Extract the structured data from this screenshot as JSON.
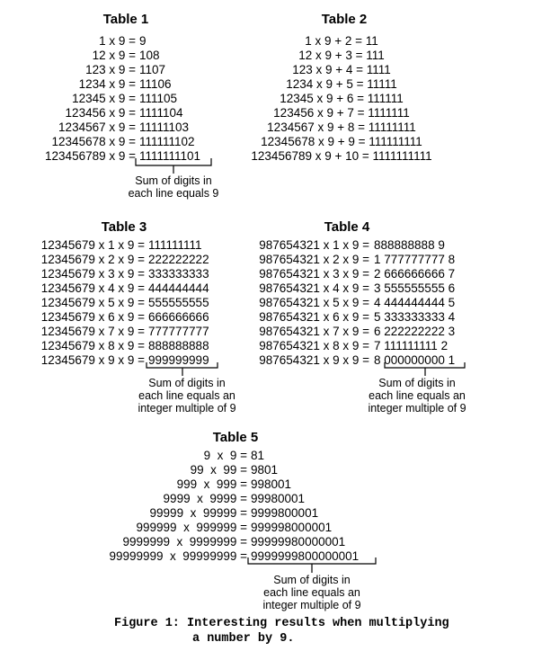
{
  "table1": {
    "title": "Table 1",
    "lines": [
      [
        "1 x 9 =",
        "9"
      ],
      [
        "12 x 9 =",
        "108"
      ],
      [
        "123 x 9 =",
        "1107"
      ],
      [
        "1234 x 9 =",
        "11106"
      ],
      [
        "12345 x 9 =",
        "111105"
      ],
      [
        "123456 x 9 =",
        "1111104"
      ],
      [
        "1234567 x 9 =",
        "11111103"
      ],
      [
        "12345678 x 9 =",
        "111111102"
      ],
      [
        "123456789 x 9 =",
        "1111111101"
      ]
    ],
    "note": [
      "Sum of digits in",
      "each line equals 9"
    ]
  },
  "table2": {
    "title": "Table 2",
    "lines": [
      "1 x 9 + 2 = 11",
      "12 x 9 + 3 = 111",
      "123 x 9 + 4 = 1111",
      "1234 x 9 + 5 = 11111",
      "12345 x 9 + 6 = 111111",
      "123456 x 9 + 7 = 1111111",
      "1234567 x 9 + 8 = 11111111",
      "12345678 x 9 + 9 = 111111111",
      "123456789 x 9 + 10 = 1111111111"
    ]
  },
  "table3": {
    "title": "Table 3",
    "lines": [
      [
        "12345679 x 1 x 9 =",
        "111111111"
      ],
      [
        "12345679 x 2 x 9 =",
        "222222222"
      ],
      [
        "12345679 x 3 x 9 =",
        "333333333"
      ],
      [
        "12345679 x 4 x 9 =",
        "444444444"
      ],
      [
        "12345679 x 5 x 9 =",
        "555555555"
      ],
      [
        "12345679 x 6 x 9 =",
        "666666666"
      ],
      [
        "12345679 x 7 x 9 =",
        "777777777"
      ],
      [
        "12345679 x 8 x 9 =",
        "888888888"
      ],
      [
        "12345679 x 9 x 9 =",
        "999999999"
      ]
    ],
    "note": [
      "Sum of digits in",
      "each line equals an",
      "integer multiple of 9"
    ]
  },
  "table4": {
    "title": "Table 4",
    "lines": [
      [
        "987654321 x 1 x 9 =",
        "888888888 9"
      ],
      [
        "987654321 x 2 x 9 =",
        "1 777777777 8"
      ],
      [
        "987654321 x 3 x 9 =",
        "2 666666666 7"
      ],
      [
        "987654321 x 4 x 9 =",
        "3 555555555 6"
      ],
      [
        "987654321 x 5 x 9 =",
        "4 444444444 5"
      ],
      [
        "987654321 x 6 x 9 =",
        "5 333333333 4"
      ],
      [
        "987654321 x 7 x 9 =",
        "6 222222222 3"
      ],
      [
        "987654321 x 8 x 9 =",
        "7 111111111 2"
      ],
      [
        "987654321 x 9 x 9 =",
        "8 000000000 1"
      ]
    ],
    "note": [
      "Sum of digits in",
      "each line equals an",
      "integer multiple of 9"
    ]
  },
  "table5": {
    "title": "Table 5",
    "lines": [
      [
        "9  x  9 =",
        "81"
      ],
      [
        "99  x  99 =",
        "9801"
      ],
      [
        "999  x  999 =",
        "998001"
      ],
      [
        "9999  x  9999 =",
        "99980001"
      ],
      [
        "99999  x  99999 =",
        "9999800001"
      ],
      [
        "999999  x  999999 =",
        "999998000001"
      ],
      [
        "9999999  x  9999999 =",
        "99999980000001"
      ],
      [
        "99999999  x  99999999 =",
        "9999999800000001"
      ]
    ],
    "note": [
      "Sum of digits in",
      "each line equals an",
      "integer multiple of 9"
    ]
  },
  "caption": {
    "line1": "Figure 1: Interesting results when multiplying",
    "line2": "a number by 9."
  }
}
